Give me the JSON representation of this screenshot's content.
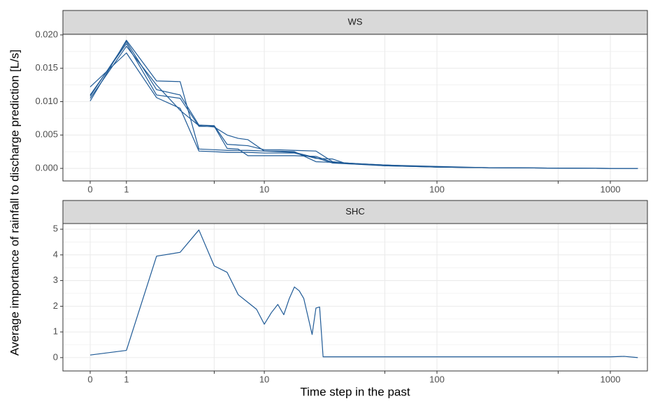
{
  "chart_data": [
    {
      "type": "line",
      "title": "WS",
      "ylabel": "Average importance of rainfall to discharge prediction [L/s]",
      "xscale": "pseudo_log",
      "grid": true,
      "color": "#1f5a96",
      "x": [
        0,
        1,
        2,
        3,
        4,
        5,
        6,
        7,
        8,
        10,
        12,
        15,
        20,
        25,
        30,
        50,
        100,
        200,
        1000,
        1440
      ],
      "series": [
        {
          "color": "#1f5a96",
          "values": [
            0.0101,
            0.0192,
            0.0131,
            0.013,
            0.0029,
            0.0028,
            0.0027,
            0.0027,
            0.0027,
            0.0026,
            0.0026,
            0.0025,
            0.001,
            0.0009,
            0.0008,
            0.0005,
            0.0002,
            0.0001,
            0.0,
            0.0
          ]
        },
        {
          "color": "#1f5a96",
          "values": [
            0.0108,
            0.019,
            0.0118,
            0.011,
            0.0065,
            0.0064,
            0.0036,
            0.0035,
            0.0034,
            0.0028,
            0.0028,
            0.0027,
            0.0026,
            0.001,
            0.0008,
            0.0005,
            0.0002,
            0.0001,
            0.0,
            0.0
          ]
        },
        {
          "color": "#1f5a96",
          "values": [
            0.011,
            0.0187,
            0.011,
            0.0105,
            0.0063,
            0.0063,
            0.003,
            0.0029,
            0.0019,
            0.0019,
            0.0019,
            0.0019,
            0.0018,
            0.0009,
            0.0008,
            0.0004,
            0.0002,
            0.0001,
            0.0,
            0.0
          ]
        },
        {
          "color": "#1f5a96",
          "values": [
            0.0122,
            0.0173,
            0.0106,
            0.009,
            0.0026,
            0.0025,
            0.0024,
            0.0024,
            0.0024,
            0.0023,
            0.0023,
            0.0023,
            0.0015,
            0.0014,
            0.0007,
            0.0004,
            0.0002,
            0.0001,
            0.0,
            0.0
          ]
        },
        {
          "color": "#1f5a96",
          "values": [
            0.0105,
            0.0183,
            0.0125,
            0.0087,
            0.0064,
            0.0062,
            0.005,
            0.0045,
            0.0043,
            0.0026,
            0.0025,
            0.0024,
            0.0016,
            0.0008,
            0.0007,
            0.0005,
            0.0003,
            0.0001,
            0.0,
            0.0
          ]
        }
      ],
      "xlim": [
        -0.74,
        1636
      ],
      "xticks": [
        0,
        1,
        10,
        100,
        1000
      ],
      "xminorticks": [
        5,
        50,
        500
      ],
      "ylim": [
        -0.00188,
        0.0201
      ],
      "yticks": [
        {
          "value": 0,
          "label": "0.000"
        },
        {
          "value": 0.005,
          "label": "0.005"
        },
        {
          "value": 0.01,
          "label": "0.010"
        },
        {
          "value": 0.015,
          "label": "0.015"
        },
        {
          "value": 0.02,
          "label": "0.020"
        }
      ]
    },
    {
      "type": "line",
      "title": "SHC",
      "xlabel": "Time step in the past",
      "xscale": "pseudo_log",
      "grid": true,
      "color": "#1f5a96",
      "x": [
        0,
        1,
        2,
        3,
        4,
        5,
        6,
        7,
        8,
        9,
        10,
        11,
        12,
        13,
        14,
        15,
        16,
        17,
        19,
        20,
        21,
        22,
        100,
        1000,
        1200,
        1440
      ],
      "series": [
        {
          "color": "#1f5a96",
          "values": [
            0.1,
            0.28,
            3.95,
            4.1,
            4.97,
            3.57,
            3.32,
            2.45,
            2.15,
            1.88,
            1.3,
            1.75,
            2.07,
            1.67,
            2.3,
            2.75,
            2.6,
            2.3,
            0.9,
            1.93,
            1.97,
            0.03,
            0.03,
            0.03,
            0.05,
            0.0
          ]
        }
      ],
      "xlim": [
        -0.74,
        1636
      ],
      "xticks": [
        0,
        1,
        10,
        100,
        1000
      ],
      "xminorticks": [
        5,
        50,
        500
      ],
      "ylim": [
        -0.52,
        5.22
      ],
      "yticks": [
        0,
        1,
        2,
        3,
        4,
        5
      ]
    }
  ]
}
